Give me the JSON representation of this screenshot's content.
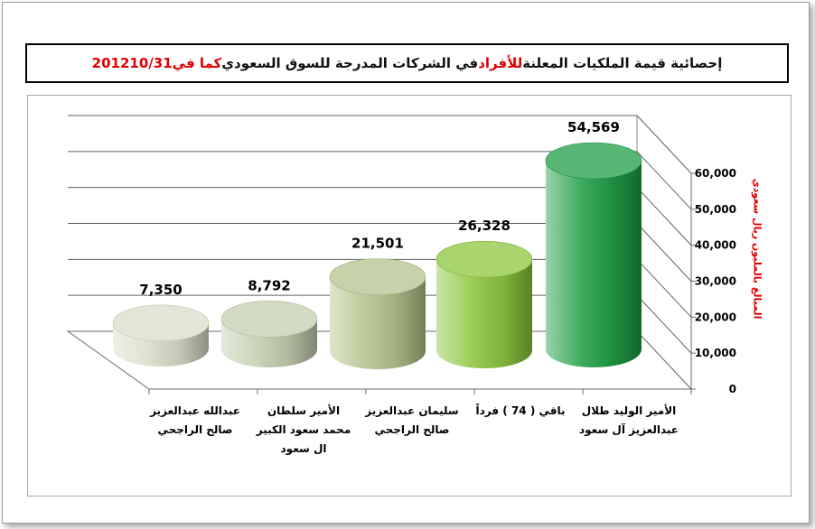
{
  "title": {
    "part1": "إحصائية قيمة الملكيات المعلنة ",
    "part2": "للأفراد",
    "part3": " في الشركات المدرجة للسوق السعودي ",
    "part4": "كما في",
    "part5": " 201210/31"
  },
  "chart_data": {
    "type": "bar",
    "categories": [
      "عبدالله عبدالعزيز صالح الراجحي",
      "الأمير سلطان محمد سعود الكبير ال سعود",
      "سليمان عبدالعزيز صالح الراجحي",
      "باقي ( 74 ) فرداً",
      "الأمير الوليد طلال عبدالعزيز آل سعود"
    ],
    "values": [
      7350,
      8792,
      21501,
      26328,
      54569
    ],
    "value_labels": [
      "7,350",
      "8,792",
      "21,501",
      "26,328",
      "54,569"
    ],
    "ylabel": "المبالغ بالمليون ريال سعودي",
    "ylim": [
      0,
      60000
    ],
    "yticks": [
      0,
      10000,
      20000,
      30000,
      40000,
      50000,
      60000
    ],
    "ytick_labels": [
      "0",
      "10,000",
      "20,000",
      "30,000",
      "40,000",
      "50,000",
      "60,000"
    ],
    "grid": true,
    "colors": {
      "bar1": "#d8dec8",
      "bar2": "#c3cfae",
      "bar3": "#b3c38c",
      "bar4": "#8cc63e",
      "bar5": "#1f9e45",
      "ylabel": "#e00000"
    }
  }
}
